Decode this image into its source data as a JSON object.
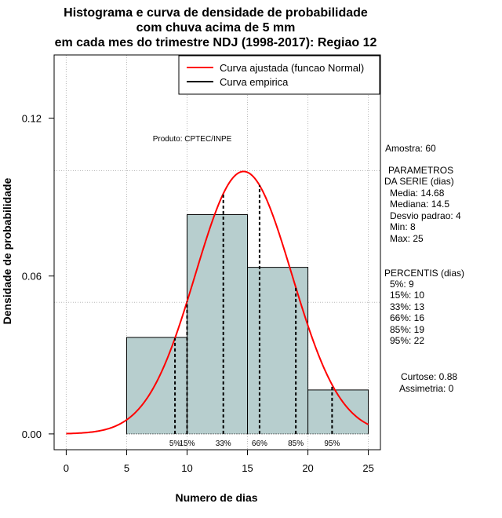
{
  "chart_data": {
    "type": "bar",
    "title": [
      "Histograma e curva de densidade de probabilidade",
      "com chuva acima de 5 mm",
      "em cada mes do trimestre NDJ (1998-2017): Regiao 12"
    ],
    "xlabel": "Numero de dias",
    "ylabel": "Densidade de probabilidade",
    "xlim": [
      -1,
      26
    ],
    "ylim": [
      -0.006,
      0.144
    ],
    "x_ticks": [
      0,
      5,
      10,
      15,
      20,
      25
    ],
    "x_tick_labels": [
      "0",
      "5",
      "10",
      "15",
      "20",
      "25"
    ],
    "y_ticks": [
      0.0,
      0.06,
      0.12
    ],
    "y_tick_labels": [
      "0.00",
      "0.06",
      "0.12"
    ],
    "grid_x": [
      0,
      5,
      10,
      15,
      20,
      25
    ],
    "grid_y": [
      0.05,
      0.1
    ],
    "bins": [
      {
        "x0": 5,
        "x1": 10,
        "density": 0.0367
      },
      {
        "x0": 10,
        "x1": 15,
        "density": 0.0833
      },
      {
        "x0": 15,
        "x1": 20,
        "density": 0.0633
      },
      {
        "x0": 20,
        "x1": 25,
        "density": 0.0167
      }
    ],
    "bar_color": "#b7cece",
    "normal_curve": {
      "mean": 14.68,
      "sd": 4,
      "from": 0,
      "to": 25,
      "color": "#ff0000"
    },
    "percentile_lines": [
      {
        "x": 9,
        "label": "5%"
      },
      {
        "x": 10,
        "label": "15%"
      },
      {
        "x": 13,
        "label": "33%"
      },
      {
        "x": 16,
        "label": "66%"
      },
      {
        "x": 19,
        "label": "85%"
      },
      {
        "x": 22,
        "label": "95%"
      }
    ],
    "legend": {
      "position": "top-right",
      "entries": [
        {
          "label": "Curva ajustada (funcao Normal)",
          "color": "#ff0000"
        },
        {
          "label": "Curva empirica",
          "color": "#000000"
        }
      ]
    },
    "annotation": "Produto: CPTEC/INPE"
  },
  "side_panel": {
    "sample": "Amostra: 60",
    "params_title_1": "PARAMETROS",
    "params_title_2": "DA SERIE (dias)",
    "params": [
      "Media: 14.68",
      "Mediana: 14.5",
      "Desvio padrao: 4",
      "Min: 8",
      "Max: 25"
    ],
    "percentis_title": "PERCENTIS (dias)",
    "percentis": [
      "5%: 9",
      "15%: 10",
      "33%: 13",
      "66%: 16",
      "85%: 19",
      "95%: 22"
    ],
    "curtose": "Curtose: 0.88",
    "assimetria": "Assimetria: 0"
  }
}
